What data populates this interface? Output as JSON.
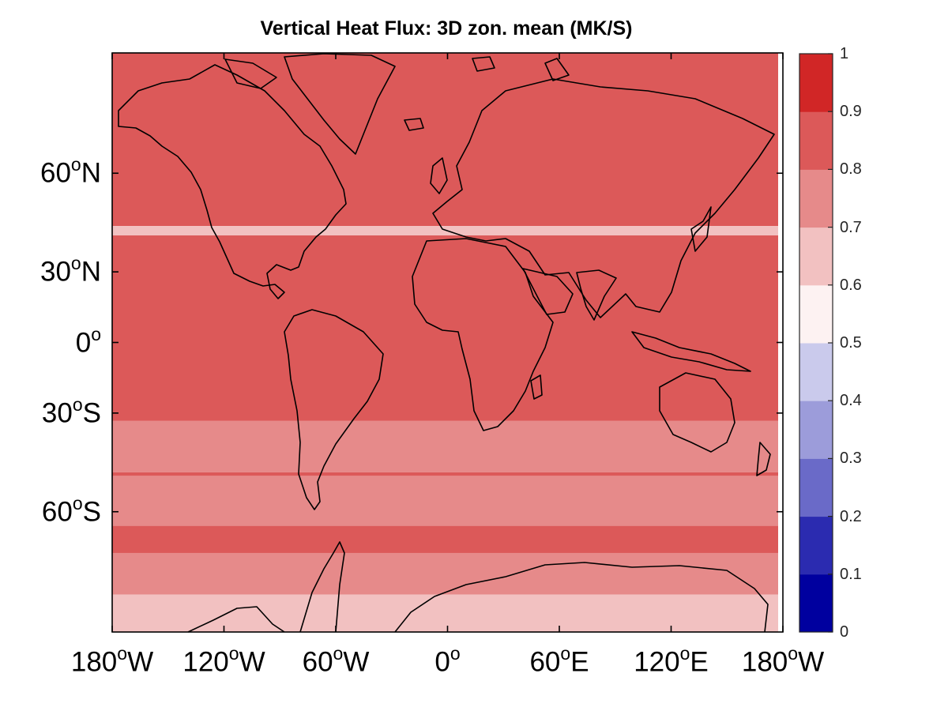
{
  "title": "Vertical Heat Flux: 3D zon. mean (MK/S)",
  "map": {
    "projection": "Mercator",
    "lon_range": [
      -180,
      180
    ],
    "lat_range": [
      -78,
      78
    ],
    "coastlines": true,
    "lat_ticks": [
      {
        "deg": "60",
        "hemi": "N"
      },
      {
        "deg": "30",
        "hemi": "N"
      },
      {
        "deg": "0",
        "hemi": ""
      },
      {
        "deg": "30",
        "hemi": "S"
      },
      {
        "deg": "60",
        "hemi": "S"
      }
    ],
    "lon_ticks": [
      {
        "deg": "180",
        "hemi": "W"
      },
      {
        "deg": "120",
        "hemi": "W"
      },
      {
        "deg": "60",
        "hemi": "W"
      },
      {
        "deg": "0",
        "hemi": ""
      },
      {
        "deg": "60",
        "hemi": "E"
      },
      {
        "deg": "120",
        "hemi": "E"
      },
      {
        "deg": "180",
        "hemi": "W"
      }
    ],
    "degree_symbol": "o"
  },
  "chart_data": {
    "type": "heatmap",
    "field": "zonal mean vertical heat flux",
    "bands_lat_value": [
      {
        "lat_from": 78,
        "lat_to": 46,
        "value": 0.85
      },
      {
        "lat_from": 46,
        "lat_to": 43,
        "value": 0.65
      },
      {
        "lat_from": 43,
        "lat_to": -33,
        "value": 0.85
      },
      {
        "lat_from": -33,
        "lat_to": -50,
        "value": 0.75
      },
      {
        "lat_from": -50,
        "lat_to": -51,
        "value": 0.85
      },
      {
        "lat_from": -51,
        "lat_to": -63,
        "value": 0.75
      },
      {
        "lat_from": -63,
        "lat_to": -68,
        "value": 0.85
      },
      {
        "lat_from": -68,
        "lat_to": -74,
        "value": 0.75
      },
      {
        "lat_from": -74,
        "lat_to": -78,
        "value": 0.65
      }
    ],
    "colorbar": {
      "range": [
        0,
        1
      ],
      "tick_labels": [
        "0",
        "0.1",
        "0.2",
        "0.3",
        "0.4",
        "0.5",
        "0.6",
        "0.7",
        "0.8",
        "0.9",
        "1"
      ],
      "colors": [
        "#00009f",
        "#2b2bb0",
        "#6a6ac8",
        "#9c9cda",
        "#cacaec",
        "#fdf2f2",
        "#f2c1c1",
        "#e68a8a",
        "#dc5959",
        "#d12626"
      ]
    }
  }
}
